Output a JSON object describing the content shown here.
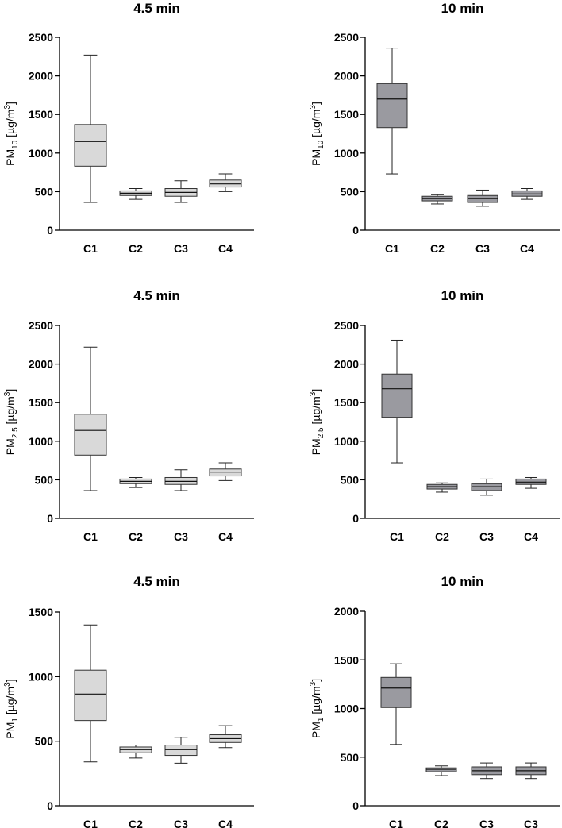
{
  "colors": {
    "light_box": "#d9d9d9",
    "dark_box": "#9a9aa0",
    "edge": "#333333"
  },
  "chart_data": [
    {
      "type": "box",
      "title": "4.5 min",
      "ylabel_main": "PM",
      "ylabel_sub": "10",
      "ylabel_unit": " [µg/m",
      "ylabel_sup": "3",
      "ylabel_close": "]",
      "ylim": [
        0,
        2500
      ],
      "yticks": [
        0,
        500,
        1000,
        1500,
        2000,
        2500
      ],
      "categories": [
        "C1",
        "C2",
        "C3",
        "C4"
      ],
      "fill": "light",
      "boxes": [
        {
          "min": 360,
          "q1": 830,
          "median": 1150,
          "q3": 1370,
          "max": 2270
        },
        {
          "min": 400,
          "q1": 450,
          "median": 480,
          "q3": 510,
          "max": 540
        },
        {
          "min": 360,
          "q1": 440,
          "median": 490,
          "q3": 540,
          "max": 640
        },
        {
          "min": 500,
          "q1": 560,
          "median": 600,
          "q3": 650,
          "max": 730
        }
      ]
    },
    {
      "type": "box",
      "title": "10 min",
      "ylabel_main": "PM",
      "ylabel_sub": "10",
      "ylabel_unit": " [µg/m",
      "ylabel_sup": "3",
      "ylabel_close": "]",
      "ylim": [
        0,
        2500
      ],
      "yticks": [
        0,
        500,
        1000,
        1500,
        2000,
        2500
      ],
      "categories": [
        "C1",
        "C2",
        "C3",
        "C4"
      ],
      "fill": "dark",
      "boxes": [
        {
          "min": 730,
          "q1": 1330,
          "median": 1700,
          "q3": 1900,
          "max": 2360
        },
        {
          "min": 340,
          "q1": 380,
          "median": 410,
          "q3": 440,
          "max": 460
        },
        {
          "min": 310,
          "q1": 360,
          "median": 410,
          "q3": 450,
          "max": 520
        },
        {
          "min": 400,
          "q1": 440,
          "median": 470,
          "q3": 510,
          "max": 540
        }
      ]
    },
    {
      "type": "box",
      "title": "4.5 min",
      "ylabel_main": "PM",
      "ylabel_sub": "2.5",
      "ylabel_unit": " [µg/m",
      "ylabel_sup": "3",
      "ylabel_close": "]",
      "ylim": [
        0,
        2500
      ],
      "yticks": [
        0,
        500,
        1000,
        1500,
        2000,
        2500
      ],
      "categories": [
        "C1",
        "C2",
        "C3",
        "C4"
      ],
      "fill": "light",
      "boxes": [
        {
          "min": 360,
          "q1": 820,
          "median": 1140,
          "q3": 1350,
          "max": 2220
        },
        {
          "min": 400,
          "q1": 450,
          "median": 480,
          "q3": 510,
          "max": 530
        },
        {
          "min": 360,
          "q1": 440,
          "median": 480,
          "q3": 530,
          "max": 630
        },
        {
          "min": 490,
          "q1": 550,
          "median": 600,
          "q3": 640,
          "max": 720
        }
      ]
    },
    {
      "type": "box",
      "title": "10 min",
      "ylabel_main": "PM",
      "ylabel_sub": "2.5",
      "ylabel_unit": " [µg/m",
      "ylabel_sup": "3",
      "ylabel_close": "]",
      "ylim": [
        0,
        2500
      ],
      "yticks": [
        0,
        500,
        1000,
        1500,
        2000,
        2500
      ],
      "categories": [
        "C1",
        "C2",
        "C3",
        "C4"
      ],
      "fill": "dark",
      "boxes": [
        {
          "min": 720,
          "q1": 1310,
          "median": 1680,
          "q3": 1870,
          "max": 2310
        },
        {
          "min": 340,
          "q1": 380,
          "median": 410,
          "q3": 440,
          "max": 460
        },
        {
          "min": 300,
          "q1": 360,
          "median": 410,
          "q3": 450,
          "max": 510
        },
        {
          "min": 390,
          "q1": 440,
          "median": 470,
          "q3": 510,
          "max": 530
        }
      ]
    },
    {
      "type": "box",
      "title": "4.5 min",
      "ylabel_main": "PM",
      "ylabel_sub": "1",
      "ylabel_unit": " [µg/m",
      "ylabel_sup": "3",
      "ylabel_close": "]",
      "ylim": [
        0,
        1500
      ],
      "yticks": [
        0,
        500,
        1000,
        1500
      ],
      "categories": [
        "C1",
        "C2",
        "C3",
        "C4"
      ],
      "fill": "light",
      "boxes": [
        {
          "min": 340,
          "q1": 660,
          "median": 865,
          "q3": 1050,
          "max": 1400
        },
        {
          "min": 370,
          "q1": 410,
          "median": 435,
          "q3": 455,
          "max": 470
        },
        {
          "min": 330,
          "q1": 390,
          "median": 435,
          "q3": 470,
          "max": 530
        },
        {
          "min": 450,
          "q1": 490,
          "median": 520,
          "q3": 550,
          "max": 620
        }
      ]
    },
    {
      "type": "box",
      "title": "10 min",
      "ylabel_main": "PM",
      "ylabel_sub": "1",
      "ylabel_unit": " [µg/m",
      "ylabel_sup": "3",
      "ylabel_close": "]",
      "ylim": [
        0,
        2000
      ],
      "yticks": [
        0,
        500,
        1000,
        1500,
        2000
      ],
      "categories": [
        "C1",
        "C2",
        "C3",
        "C3"
      ],
      "fill": "dark",
      "boxes": [
        {
          "min": 630,
          "q1": 1010,
          "median": 1210,
          "q3": 1320,
          "max": 1460
        },
        {
          "min": 310,
          "q1": 350,
          "median": 375,
          "q3": 390,
          "max": 410
        },
        {
          "min": 280,
          "q1": 320,
          "median": 360,
          "q3": 400,
          "max": 440
        },
        {
          "min": 280,
          "q1": 320,
          "median": 360,
          "q3": 400,
          "max": 440
        }
      ]
    }
  ]
}
